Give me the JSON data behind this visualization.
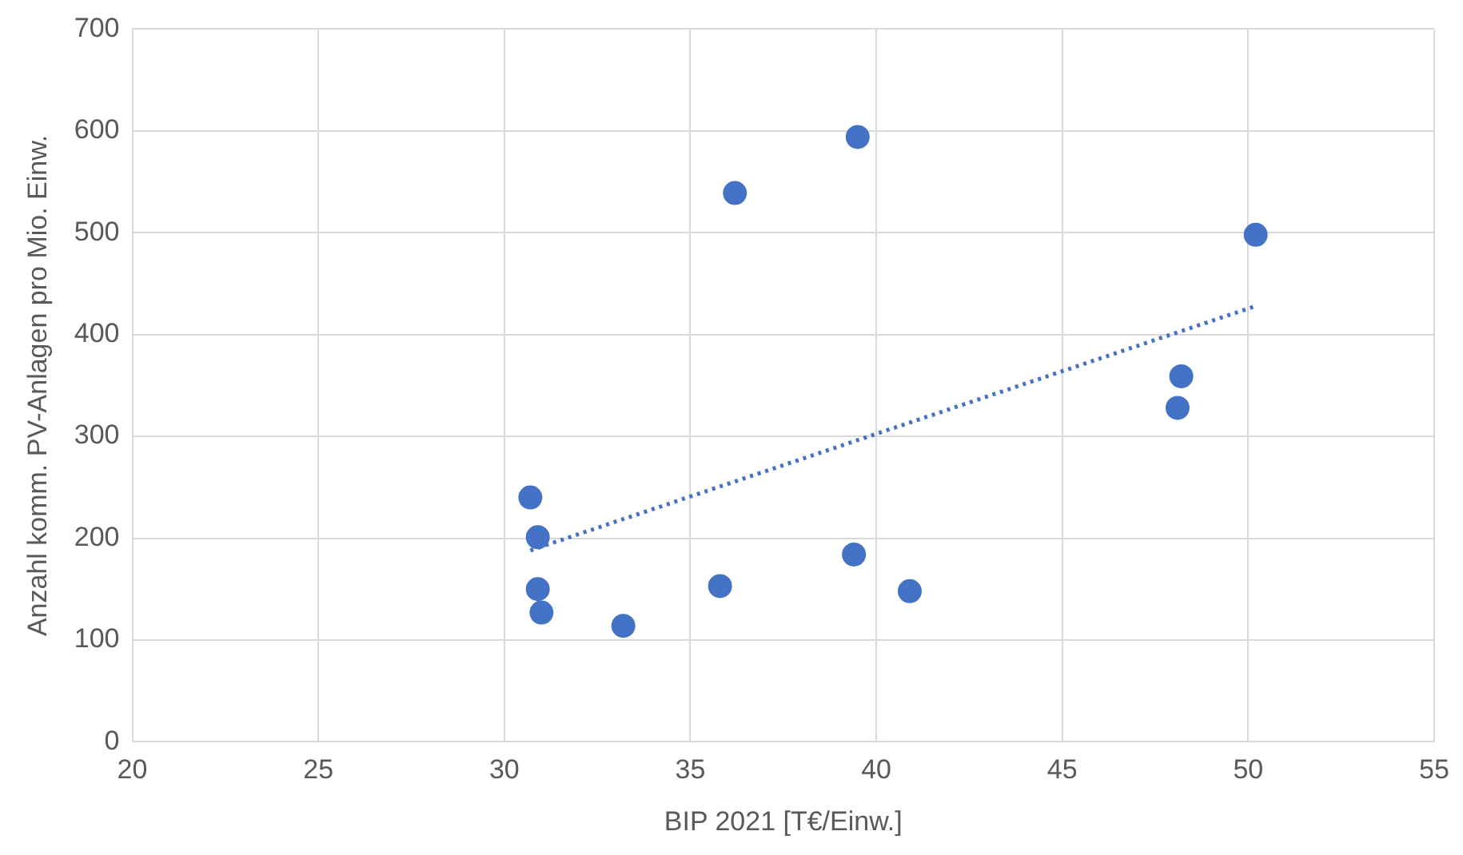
{
  "chart_data": {
    "type": "scatter",
    "xlabel": "BIP 2021 [T€/Einw.]",
    "ylabel": "Anzahl komm. PV-Anlagen pro Mio. Einw.",
    "xlim": [
      20,
      55
    ],
    "xticks": [
      20,
      25,
      30,
      35,
      40,
      45,
      50,
      55
    ],
    "ylim": [
      0,
      700
    ],
    "yticks": [
      0,
      100,
      200,
      300,
      400,
      500,
      600,
      700
    ],
    "grid": true,
    "legend": false,
    "series": [
      {
        "marker": "circle",
        "color": "#4472c4",
        "x": [
          30.7,
          30.9,
          30.9,
          31.0,
          33.2,
          35.8,
          36.2,
          39.5,
          39.4,
          40.9,
          48.1,
          48.2,
          50.2
        ],
        "values": [
          240,
          201,
          150,
          127,
          114,
          153,
          539,
          594,
          184,
          148,
          328,
          359,
          498
        ]
      },
      {
        "type": "line",
        "color": "#4472c4",
        "line_style": "dotted",
        "x": [
          30.7,
          50.2
        ],
        "values": [
          188,
          428
        ]
      }
    ]
  }
}
